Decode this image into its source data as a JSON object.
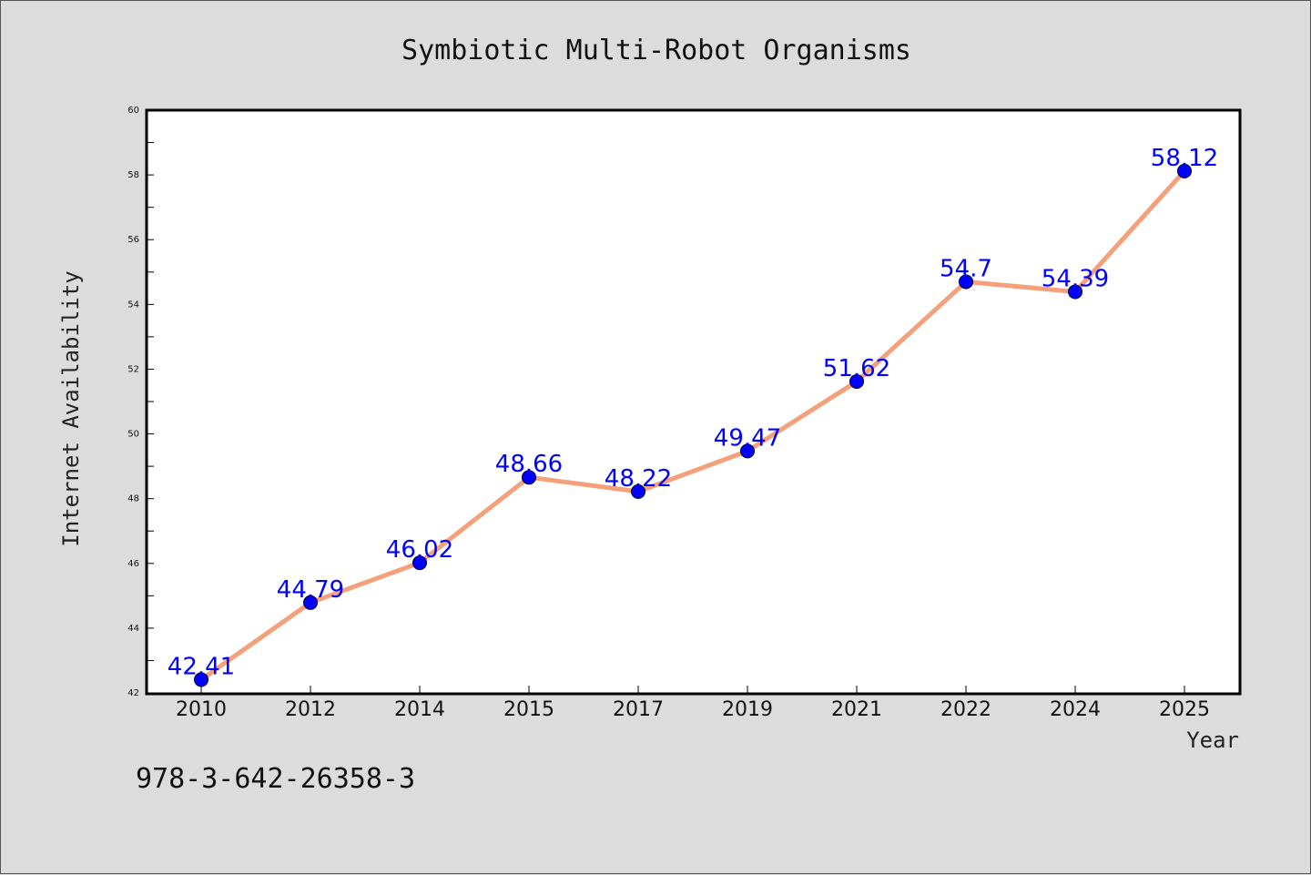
{
  "chart_data": {
    "type": "line",
    "title": "Symbiotic Multi-Robot Organisms",
    "xlabel": "Year",
    "ylabel": "Internet Availability",
    "categories": [
      "2010",
      "2012",
      "2014",
      "2015",
      "2017",
      "2019",
      "2021",
      "2022",
      "2024",
      "2025"
    ],
    "values": [
      42.41,
      44.79,
      46.02,
      48.66,
      48.22,
      49.47,
      51.62,
      54.7,
      54.39,
      58.12
    ],
    "ylim": [
      42,
      60
    ],
    "yticks": [
      42,
      44,
      46,
      48,
      50,
      52,
      54,
      56,
      58,
      60
    ],
    "grid": false,
    "line_color": "#f4a07a",
    "marker_color": "#0000ff",
    "label_color": "#0000ff"
  },
  "footer": {
    "isbn": "978-3-642-26358-3"
  }
}
